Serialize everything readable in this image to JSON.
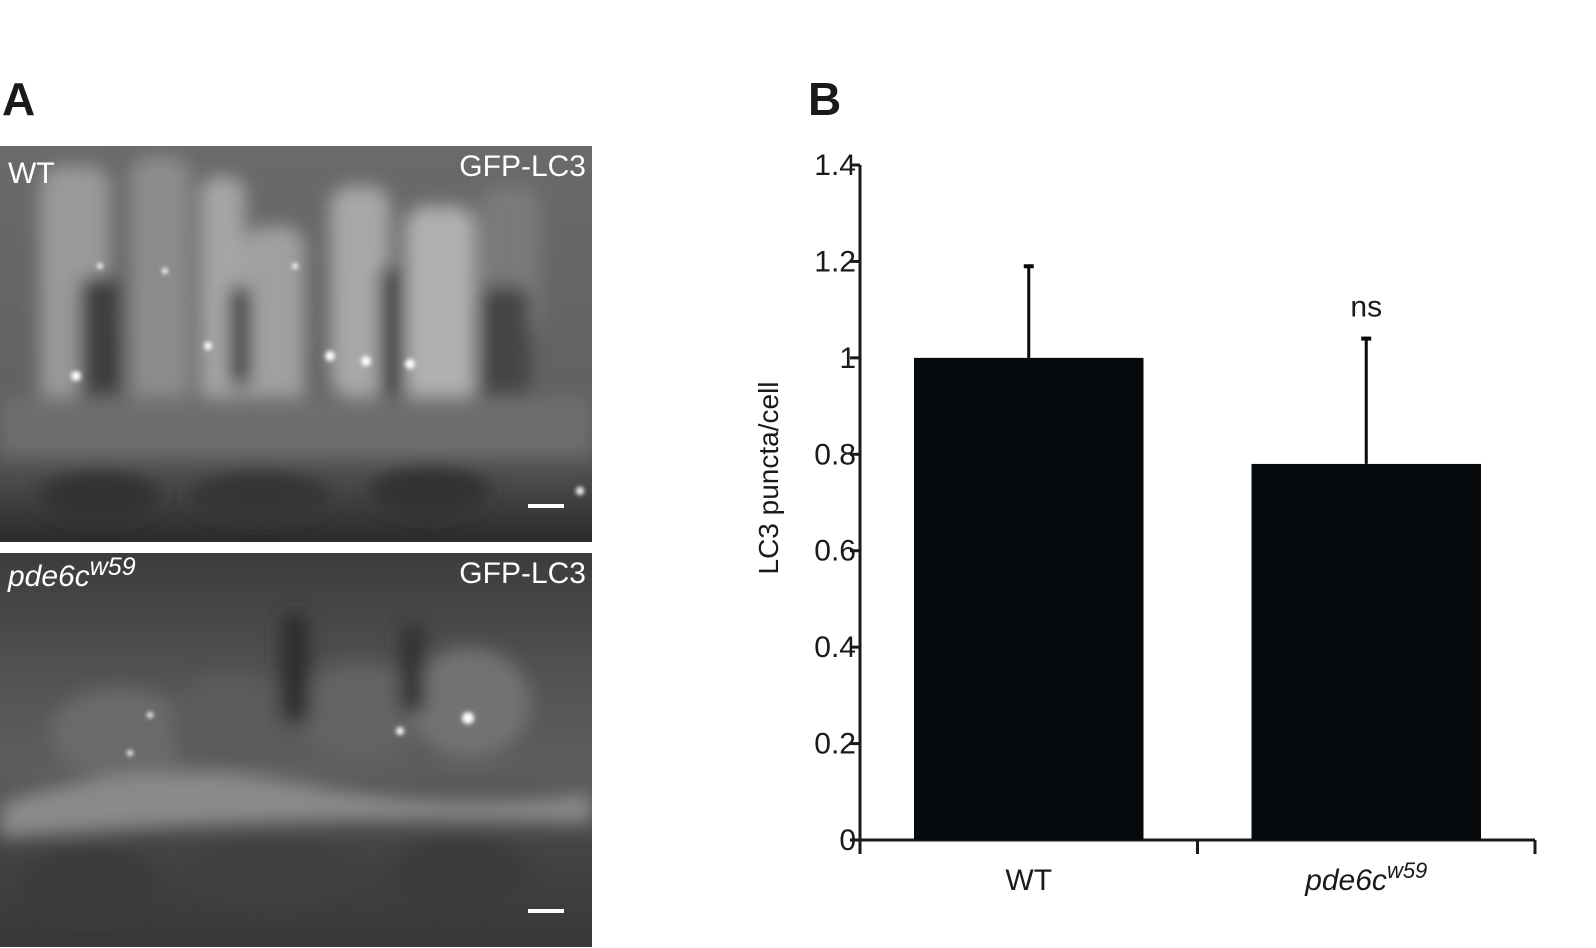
{
  "panels": {
    "a_letter": "A",
    "b_letter": "B"
  },
  "micrographs": [
    {
      "genotype": "WT",
      "genotype_sup": "",
      "genotype_italic": false,
      "marker": "GFP-LC3"
    },
    {
      "genotype": "pde6c",
      "genotype_sup": "w59",
      "genotype_italic": true,
      "marker": "GFP-LC3"
    }
  ],
  "chart_data": {
    "type": "bar",
    "title": "",
    "ylabel": "LC3 puncta/cell",
    "xlabel": "",
    "categories": [
      {
        "name": "WT",
        "sup": "",
        "italic": false
      },
      {
        "name": "pde6c",
        "sup": "w59",
        "italic": true
      }
    ],
    "values": [
      1.0,
      0.78
    ],
    "error_plus": [
      0.19,
      0.26
    ],
    "annotations": [
      "",
      "ns"
    ],
    "ylim": [
      0,
      1.4
    ],
    "yticks": [
      "0",
      "0.2",
      "0.4",
      "0.6",
      "0.8",
      "1",
      "1.2",
      "1.4"
    ],
    "ytick_values": [
      0,
      0.2,
      0.4,
      0.6,
      0.8,
      1.0,
      1.2,
      1.4
    ],
    "bar_color": "#060a0c",
    "grid": false,
    "legend": "none"
  }
}
